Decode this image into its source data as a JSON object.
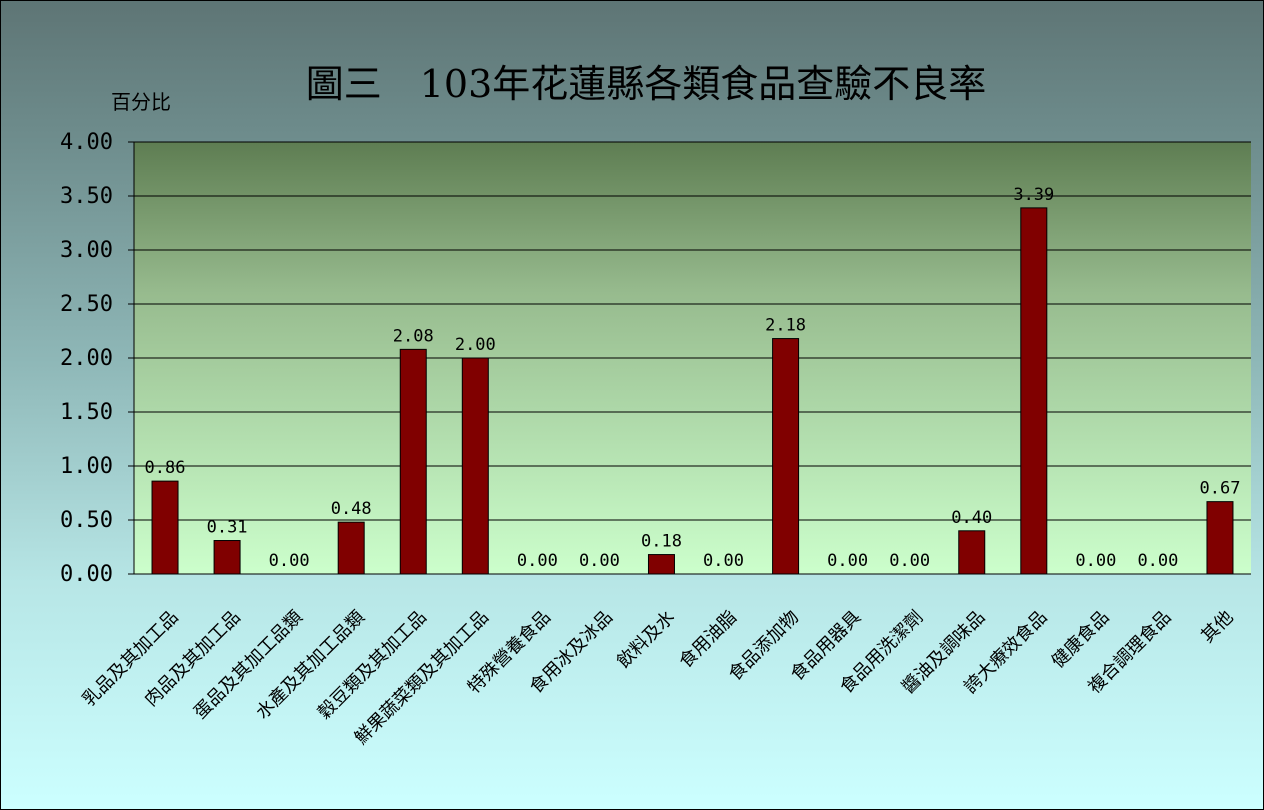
{
  "chart_data": {
    "type": "bar",
    "title": "圖三　103年花蓮縣各類食品查驗不良率",
    "ylabel": "百分比",
    "xlabel": "",
    "ylim": [
      0,
      4
    ],
    "yticks": [
      "0.00",
      "0.50",
      "1.00",
      "1.50",
      "2.00",
      "2.50",
      "3.00",
      "3.50",
      "4.00"
    ],
    "grid": true,
    "legend": "none",
    "bar_color": "#800000",
    "categories": [
      "乳品及其加工品",
      "肉品及其加工品",
      "蛋品及其加工品類",
      "水產及其加工品類",
      "穀豆類及其加工品",
      "鮮果蔬菜類及其加工品",
      "特殊營養食品",
      "食用冰及冰品",
      "飲料及水",
      "食用油脂",
      "食品添加物",
      "食品用器具",
      "食品用洗潔劑",
      "醬油及調味品",
      "誇大療效食品",
      "健康食品",
      "複合調理食品",
      "其他"
    ],
    "values": [
      0.86,
      0.31,
      0,
      0.48,
      2.08,
      2,
      0,
      0,
      0.18,
      0,
      2.18,
      0,
      0,
      0.4,
      3.39,
      0,
      0,
      0.67
    ],
    "data_labels": [
      "0.86",
      "0.31",
      "0.00",
      "0.48",
      "2.08",
      "2.00",
      "0.00",
      "0.00",
      "0.18",
      "0.00",
      "2.18",
      "0.00",
      "0.00",
      "0.40",
      "3.39",
      "0.00",
      "0.00",
      "0.67"
    ]
  }
}
